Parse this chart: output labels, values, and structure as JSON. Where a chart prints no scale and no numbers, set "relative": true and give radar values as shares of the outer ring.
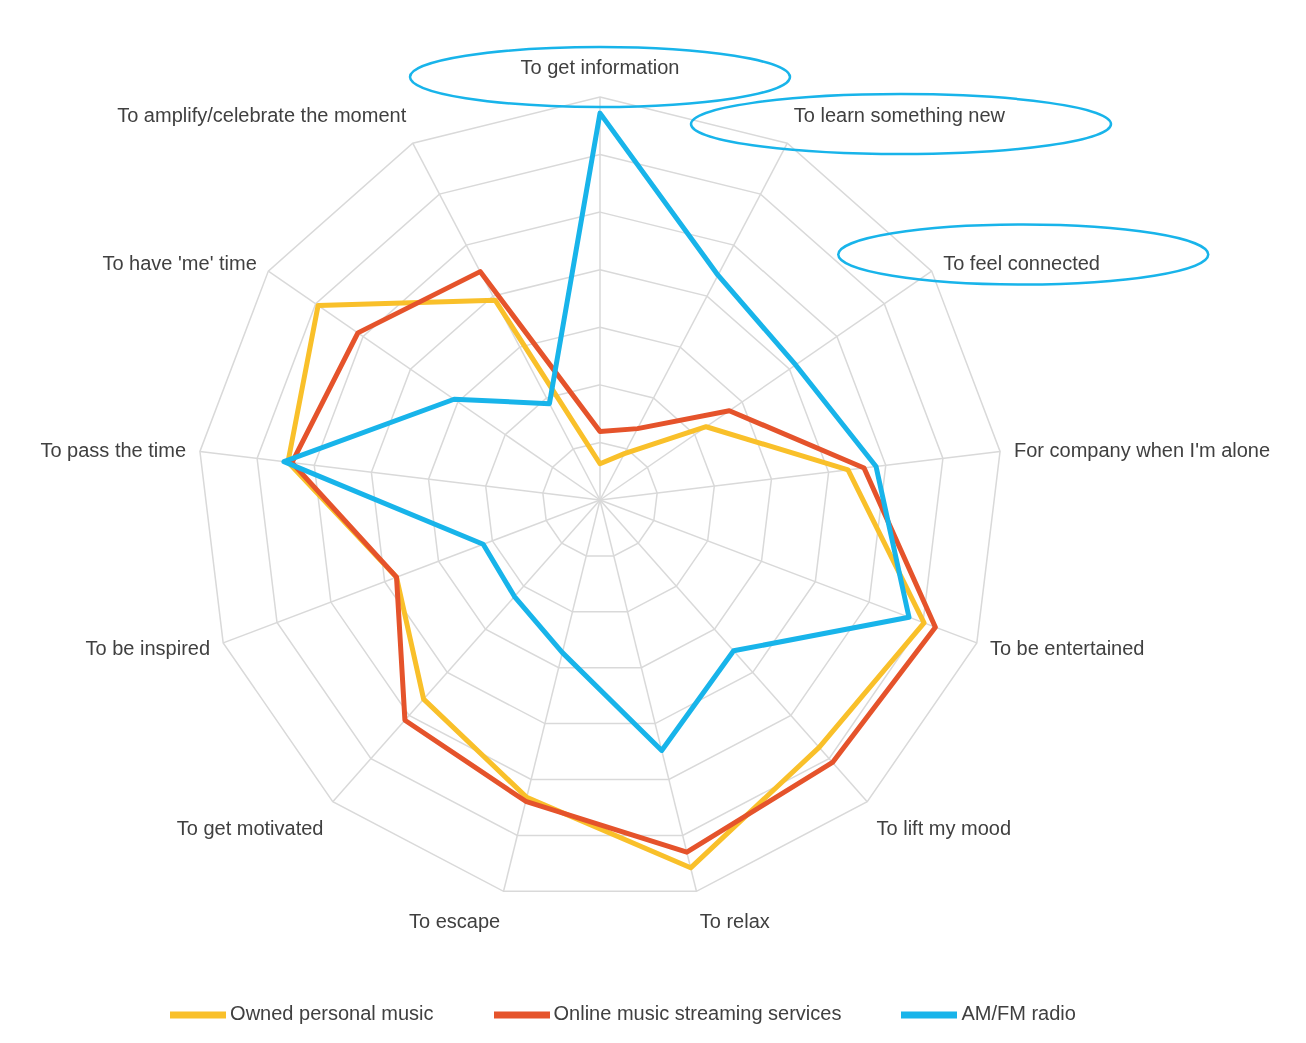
{
  "chart_data": {
    "type": "radar",
    "relative": true,
    "grid": true,
    "legend": "bottom",
    "marker": "none",
    "categories": [
      "To get information",
      "To learn something new",
      "To feel connected",
      "For company when I'm alone",
      "To be entertained",
      "To lift my mood",
      "To relax",
      "To escape",
      "To get motivated",
      "To be inspired",
      "To pass the time",
      "To have 'me' time",
      "To amplify/celebrate the moment"
    ],
    "series": [
      {
        "name": "Owned personal music",
        "color": "#f9c02a",
        "values": [
          0.09,
          0.13,
          0.32,
          0.62,
          0.86,
          0.82,
          0.94,
          0.76,
          0.66,
          0.54,
          0.78,
          0.85,
          0.56
        ]
      },
      {
        "name": "Online music streaming services",
        "color": "#e5532b",
        "values": [
          0.17,
          0.2,
          0.39,
          0.66,
          0.89,
          0.87,
          0.9,
          0.77,
          0.73,
          0.54,
          0.77,
          0.73,
          0.64
        ]
      },
      {
        "name": "AM/FM radio",
        "color": "#18b4ea",
        "values": [
          0.96,
          0.63,
          0.59,
          0.69,
          0.82,
          0.5,
          0.64,
          0.39,
          0.32,
          0.31,
          0.79,
          0.44,
          0.27
        ]
      }
    ]
  }
}
